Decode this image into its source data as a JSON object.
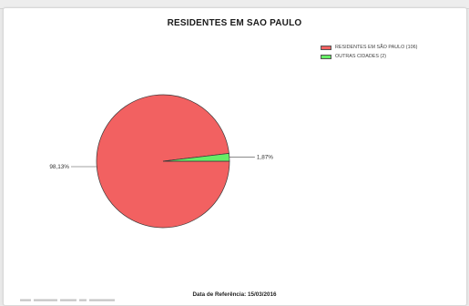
{
  "chart_data": {
    "type": "pie",
    "title": "RESIDENTES EM SAO PAULO",
    "slices": [
      {
        "name": "RESIDENTES EM SÃO PAULO (106)",
        "value": 98.13,
        "label": "98,13%",
        "color": "#f26161"
      },
      {
        "name": "OUTRAS CIDADES (2)",
        "value": 1.87,
        "label": "1,87%",
        "color": "#66ee66"
      }
    ],
    "legend_position": "top-right"
  },
  "footer": {
    "reference": "Data de Referência: 15/03/2016"
  }
}
